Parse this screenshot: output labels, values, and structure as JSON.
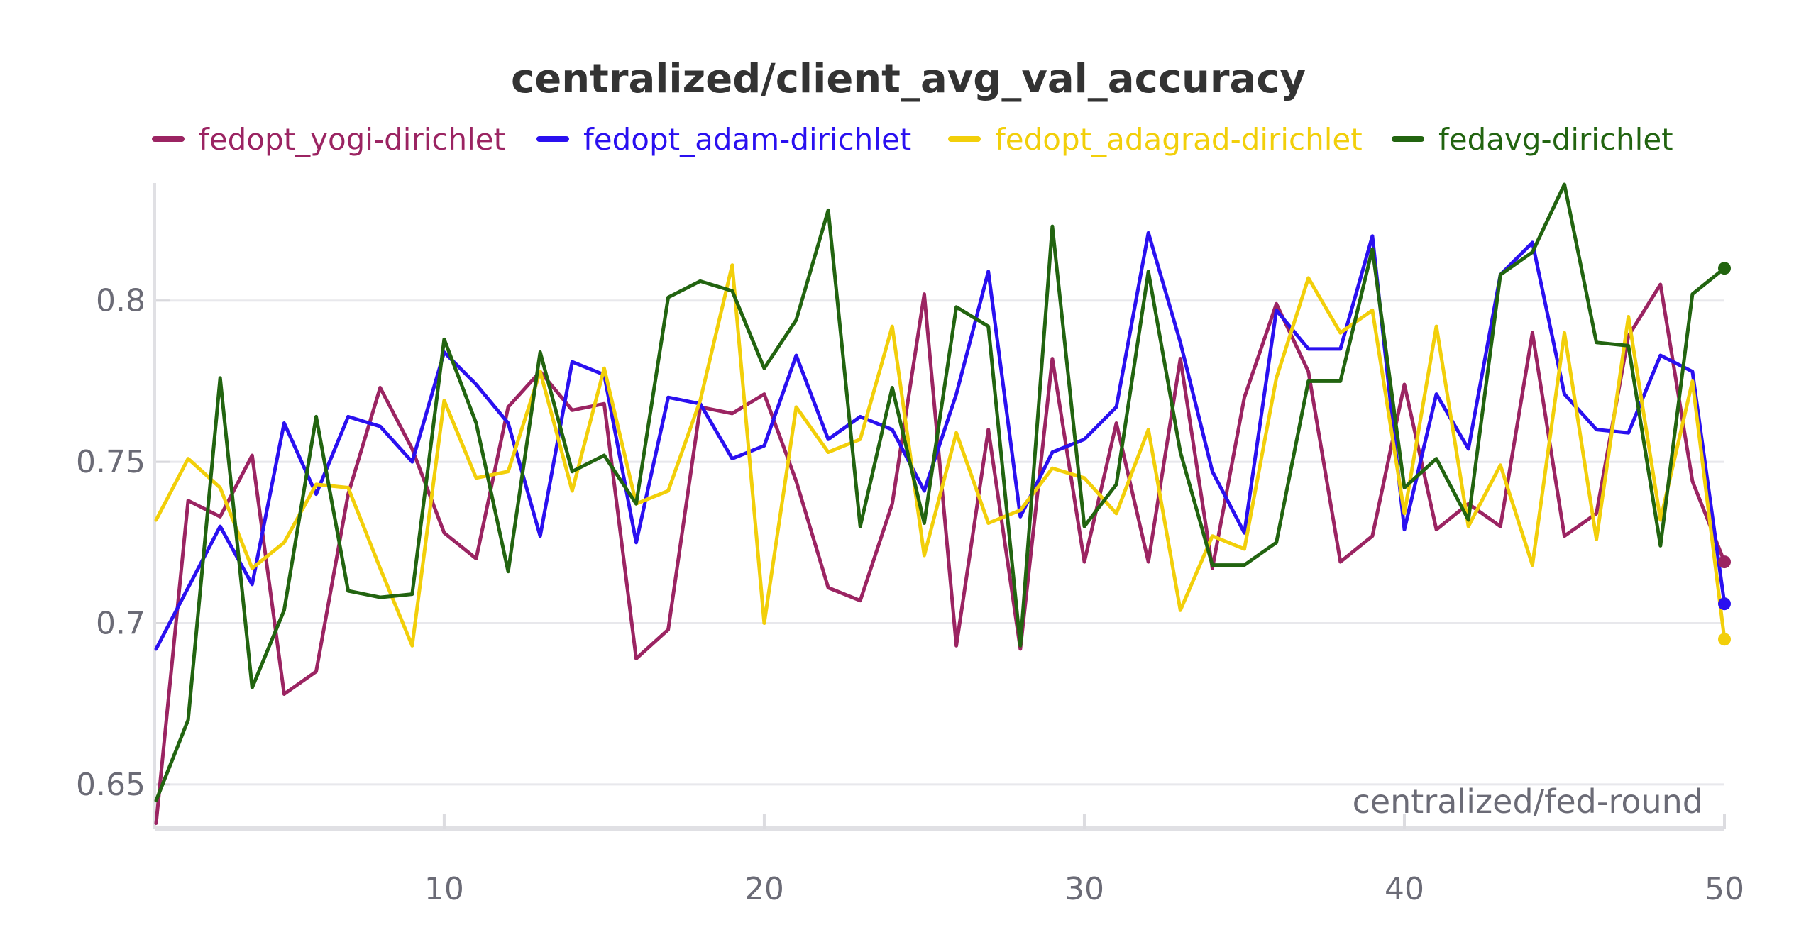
{
  "chart_data": {
    "type": "line",
    "title": "centralized/client_avg_val_accuracy",
    "xlabel": "centralized/fed-round",
    "ylabel": "",
    "xlim": [
      1,
      50
    ],
    "ylim": [
      0.637,
      0.836
    ],
    "x_ticks": [
      10,
      20,
      30,
      40,
      50
    ],
    "y_ticks": [
      0.65,
      0.7,
      0.75,
      0.8
    ],
    "y_tick_labels": [
      "0.65",
      "0.7",
      "0.75",
      "0.8"
    ],
    "grid": "horizontal",
    "legend_position": "top",
    "x": [
      1,
      2,
      3,
      4,
      5,
      6,
      7,
      8,
      9,
      10,
      11,
      12,
      13,
      14,
      15,
      16,
      17,
      18,
      19,
      20,
      21,
      22,
      23,
      24,
      25,
      26,
      27,
      28,
      29,
      30,
      31,
      32,
      33,
      34,
      35,
      36,
      37,
      38,
      39,
      40,
      41,
      42,
      43,
      44,
      45,
      46,
      47,
      48,
      49,
      50
    ],
    "series": [
      {
        "name": "fedopt_yogi-dirichlet",
        "color": "#9b2462",
        "values": [
          0.638,
          0.738,
          0.733,
          0.752,
          0.678,
          0.685,
          0.74,
          0.773,
          0.754,
          0.728,
          0.72,
          0.767,
          0.778,
          0.766,
          0.768,
          0.689,
          0.698,
          0.767,
          0.765,
          0.771,
          0.744,
          0.711,
          0.707,
          0.737,
          0.802,
          0.693,
          0.76,
          0.692,
          0.782,
          0.719,
          0.762,
          0.719,
          0.782,
          0.717,
          0.77,
          0.799,
          0.778,
          0.719,
          0.727,
          0.774,
          0.729,
          0.737,
          0.73,
          0.79,
          0.727,
          0.734,
          0.789,
          0.805,
          0.744,
          0.719
        ]
      },
      {
        "name": "fedopt_adam-dirichlet",
        "color": "#2a10f0",
        "values": [
          0.692,
          0.711,
          0.73,
          0.712,
          0.762,
          0.74,
          0.764,
          0.761,
          0.75,
          0.784,
          0.774,
          0.762,
          0.727,
          0.781,
          0.777,
          0.725,
          0.77,
          0.768,
          0.751,
          0.755,
          0.783,
          0.757,
          0.764,
          0.76,
          0.741,
          0.771,
          0.809,
          0.733,
          0.753,
          0.757,
          0.767,
          0.821,
          0.787,
          0.747,
          0.728,
          0.797,
          0.785,
          0.785,
          0.82,
          0.729,
          0.771,
          0.754,
          0.808,
          0.818,
          0.771,
          0.76,
          0.759,
          0.783,
          0.778,
          0.706
        ]
      },
      {
        "name": "fedopt_adagrad-dirichlet",
        "color": "#f2cf0a",
        "values": [
          0.732,
          0.751,
          0.742,
          0.717,
          0.725,
          0.743,
          0.742,
          0.717,
          0.693,
          0.769,
          0.745,
          0.747,
          0.778,
          0.741,
          0.779,
          0.737,
          0.741,
          0.769,
          0.811,
          0.7,
          0.767,
          0.753,
          0.757,
          0.792,
          0.721,
          0.759,
          0.731,
          0.735,
          0.748,
          0.745,
          0.734,
          0.76,
          0.704,
          0.727,
          0.723,
          0.776,
          0.807,
          0.79,
          0.797,
          0.734,
          0.792,
          0.73,
          0.749,
          0.718,
          0.79,
          0.726,
          0.795,
          0.732,
          0.775,
          0.695
        ]
      },
      {
        "name": "fedavg-dirichlet",
        "color": "#226410",
        "values": [
          0.645,
          0.67,
          0.776,
          0.68,
          0.704,
          0.764,
          0.71,
          0.708,
          0.709,
          0.788,
          0.762,
          0.716,
          0.784,
          0.747,
          0.752,
          0.737,
          0.801,
          0.806,
          0.803,
          0.779,
          0.794,
          0.828,
          0.73,
          0.773,
          0.731,
          0.798,
          0.792,
          0.693,
          0.823,
          0.73,
          0.743,
          0.809,
          0.753,
          0.718,
          0.718,
          0.725,
          0.775,
          0.775,
          0.816,
          0.742,
          0.751,
          0.732,
          0.808,
          0.815,
          0.836,
          0.787,
          0.786,
          0.724,
          0.802,
          0.81
        ]
      }
    ]
  }
}
